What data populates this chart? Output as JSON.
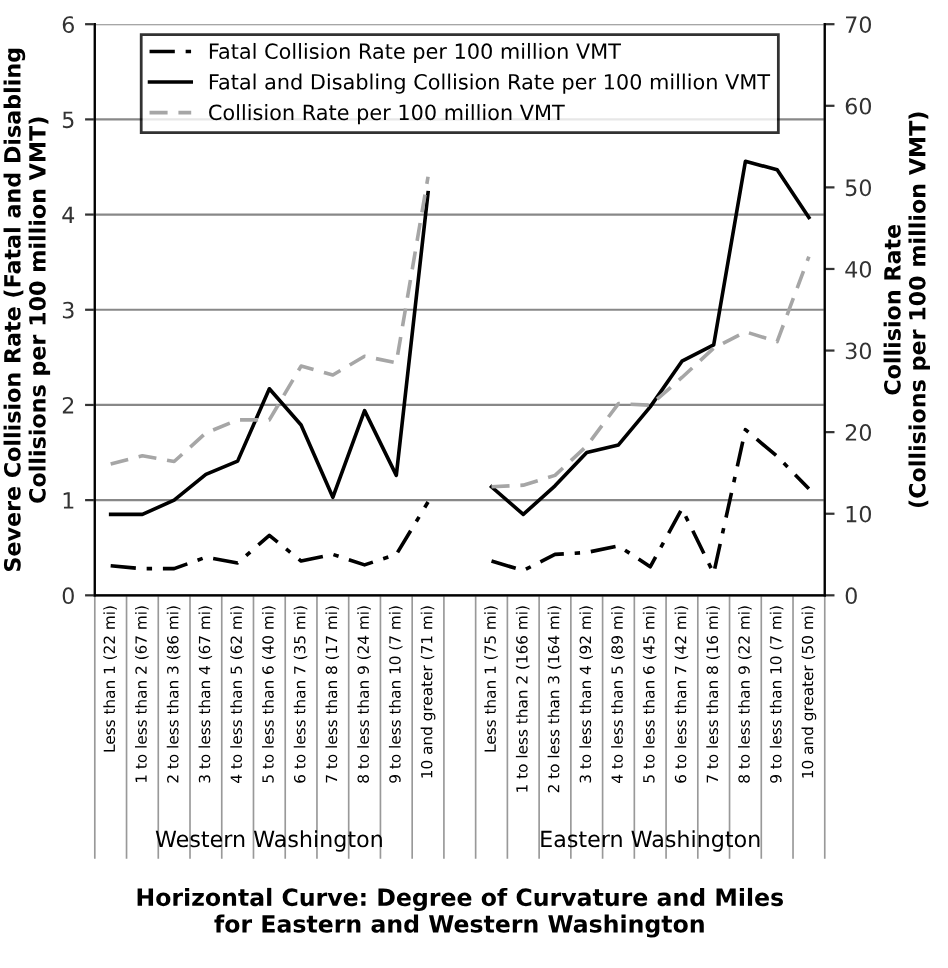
{
  "chart_data": {
    "type": "line",
    "categories": [
      "Less than 1 (22 mi)",
      "1 to less than 2 (67 mi)",
      "2 to less than 3 (86 mi)",
      "3 to less than 4 (67 mi)",
      "4 to less than 5 (62 mi)",
      "5 to less than 6 (40 mi)",
      "6 to less than 7 (35 mi)",
      "7 to less than 8 (17 mi)",
      "8 to less than 9 (24 mi)",
      "9 to less than 10 (7 mi)",
      "10 and greater (71 mi)",
      null,
      "Less than 1 (75 mi)",
      "1 to less than 2 (166 mi)",
      "2 to less than 3 (164 mi)",
      "3 to less than 4 (92 mi)",
      "4 to less than 5 (89 mi)",
      "5 to less than 6 (45 mi)",
      "6 to less than 7 (42 mi)",
      "7 to less than 8 (16 mi)",
      "8 to less than 9 (22 mi)",
      "9 to less than 10 (7 mi)",
      "10 and greater (50 mi)"
    ],
    "series": [
      {
        "name": "Fatal Collision Rate per 100 million VMT",
        "color": "#000000",
        "line_style": "dashdot",
        "values": [
          0.31,
          0.28,
          0.28,
          0.4,
          0.34,
          0.63,
          0.36,
          0.43,
          0.32,
          0.43,
          0.98,
          null,
          0.36,
          0.26,
          0.43,
          0.45,
          0.52,
          0.3,
          0.91,
          0.23,
          1.74,
          1.46,
          1.12
        ]
      },
      {
        "name": "Fatal and Disabling Collision Rate per 100 million VMT",
        "color": "#000000",
        "line_style": "solid",
        "values": [
          0.85,
          0.85,
          1.0,
          1.27,
          1.41,
          2.17,
          1.79,
          1.03,
          1.94,
          1.26,
          4.23,
          null,
          1.14,
          0.85,
          1.15,
          1.5,
          1.58,
          1.98,
          2.46,
          2.63,
          4.56,
          4.47,
          3.97
        ]
      },
      {
        "name": "Collision Rate per 100 million VMT",
        "color": "#a6a6a6",
        "line_style": "dashed",
        "axis": "y2",
        "values": [
          16.1,
          17.1,
          16.4,
          19.9,
          21.5,
          21.5,
          28.1,
          27.0,
          29.3,
          28.5,
          51.3,
          null,
          13.3,
          13.5,
          14.7,
          18.3,
          23.5,
          23.3,
          26.7,
          30.3,
          32.3,
          31.1,
          41.5
        ]
      }
    ],
    "ylim": [
      0,
      6
    ],
    "yticks": [
      0,
      1,
      2,
      3,
      4,
      5,
      6
    ],
    "y2lim": [
      0,
      70
    ],
    "y2ticks": [
      0,
      10,
      20,
      30,
      40,
      50,
      60,
      70
    ],
    "ylabel": "Severe Collision Rate (Fatal and Disabling Collisions per 100 million VMT)",
    "y2label": "Collision Rate\n(Collisions per 100 million VMT)",
    "xlabel": "Horizontal Curve: Degree of Curvature and Miles\nfor Eastern and Western Washington",
    "annotations": [
      "Western Washington",
      "Eastern Washington"
    ],
    "grid": "y",
    "legend": "top",
    "marker": "none"
  }
}
